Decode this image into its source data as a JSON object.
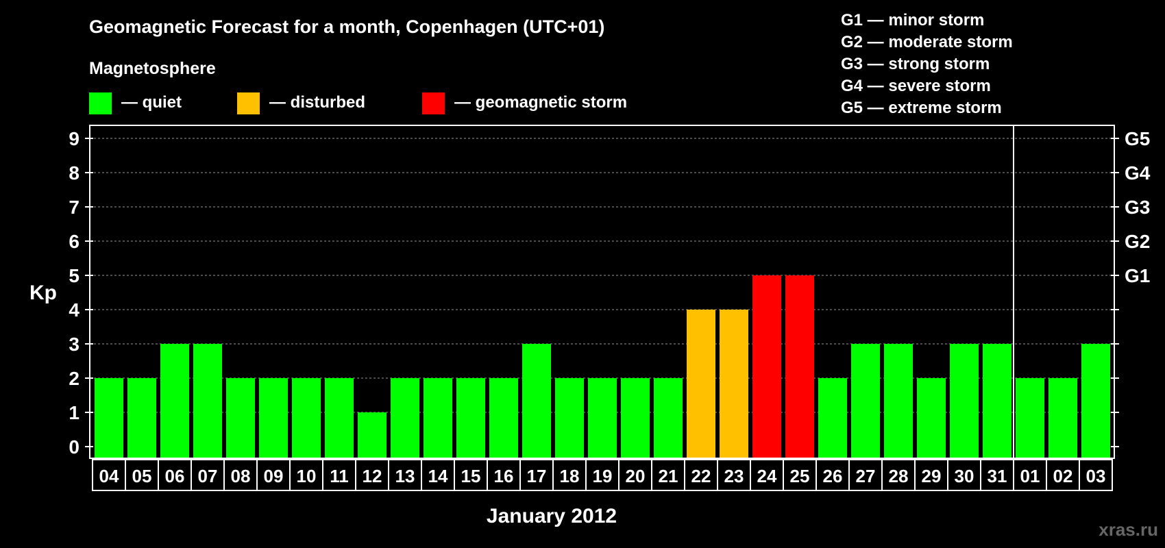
{
  "chart_data": {
    "type": "bar",
    "title": "Geomagnetic Forecast for a month, Copenhagen (UTC+01)",
    "subtitle": "Magnetosphere",
    "legend": [
      {
        "label": "— quiet",
        "color": "#00ff00"
      },
      {
        "label": "— disturbed",
        "color": "#ffc000"
      },
      {
        "label": "— geomagnetic storm",
        "color": "#ff0000"
      }
    ],
    "storm_scale": [
      "G1 — minor storm",
      "G2 — moderate storm",
      "G3 — strong storm",
      "G4 — severe storm",
      "G5 — extreme storm"
    ],
    "ylabel": "Kp",
    "xlabel": "January 2012",
    "ylim": [
      0,
      9
    ],
    "yticks": [
      0,
      1,
      2,
      3,
      4,
      5,
      6,
      7,
      8,
      9
    ],
    "right_ticks": [
      {
        "value": 5,
        "label": "G1"
      },
      {
        "value": 6,
        "label": "G2"
      },
      {
        "value": 7,
        "label": "G3"
      },
      {
        "value": 8,
        "label": "G4"
      },
      {
        "value": 9,
        "label": "G5"
      }
    ],
    "categories": [
      "04",
      "05",
      "06",
      "07",
      "08",
      "09",
      "10",
      "11",
      "12",
      "13",
      "14",
      "15",
      "16",
      "17",
      "18",
      "19",
      "20",
      "21",
      "22",
      "23",
      "24",
      "25",
      "26",
      "27",
      "28",
      "29",
      "30",
      "31",
      "01",
      "02",
      "03"
    ],
    "values": [
      2,
      2,
      3,
      3,
      2,
      2,
      2,
      2,
      1,
      2,
      2,
      2,
      2,
      3,
      2,
      2,
      2,
      2,
      4,
      4,
      5,
      5,
      2,
      3,
      3,
      2,
      3,
      3,
      2,
      2,
      3
    ],
    "month_divider_after": "31",
    "colors": {
      "quiet": "#00ff00",
      "disturbed": "#ffc000",
      "storm": "#ff0000",
      "background": "#000000",
      "foreground": "#ffffff"
    }
  },
  "watermark": "xras.ru"
}
